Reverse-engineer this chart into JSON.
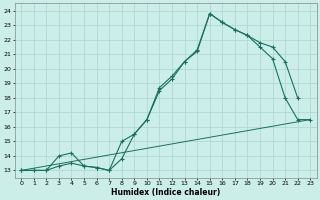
{
  "xlabel": "Humidex (Indice chaleur)",
  "bg_color": "#cceee8",
  "grid_color": "#aad4ce",
  "line_color": "#1a7060",
  "xlim": [
    -0.5,
    23.5
  ],
  "ylim": [
    12.5,
    24.5
  ],
  "xticks": [
    0,
    1,
    2,
    3,
    4,
    5,
    6,
    7,
    8,
    9,
    10,
    11,
    12,
    13,
    14,
    15,
    16,
    17,
    18,
    19,
    20,
    21,
    22,
    23
  ],
  "yticks": [
    13,
    14,
    15,
    16,
    17,
    18,
    19,
    20,
    21,
    22,
    23,
    24
  ],
  "line1_x": [
    0,
    1,
    2,
    3,
    4,
    5,
    6,
    7,
    8,
    9,
    10,
    11,
    12,
    13,
    14,
    15,
    16,
    17,
    18,
    19,
    20,
    21,
    22,
    23
  ],
  "line1_y": [
    13,
    13,
    13,
    13.3,
    13.5,
    13.3,
    13.2,
    13,
    15,
    15.5,
    16.5,
    18.5,
    19.3,
    20.5,
    21.3,
    23.8,
    23.2,
    22.7,
    22.3,
    21.5,
    20.7,
    18.0,
    16.5,
    16.5
  ],
  "line2_x": [
    0,
    1,
    2,
    3,
    4,
    5,
    6,
    7,
    8,
    9,
    10,
    11,
    12,
    13,
    14,
    15,
    16,
    17,
    18,
    19,
    20,
    21,
    22,
    23
  ],
  "line2_y": [
    13,
    13,
    13,
    14,
    14.2,
    13.3,
    13.2,
    13,
    13.8,
    15.5,
    16.5,
    18.7,
    19.5,
    20.5,
    21.2,
    23.8,
    23.2,
    22.7,
    22.3,
    21.8,
    21.5,
    20.5,
    18.0,
    null
  ],
  "line3_x": [
    0,
    23
  ],
  "line3_y": [
    13,
    16.5
  ]
}
